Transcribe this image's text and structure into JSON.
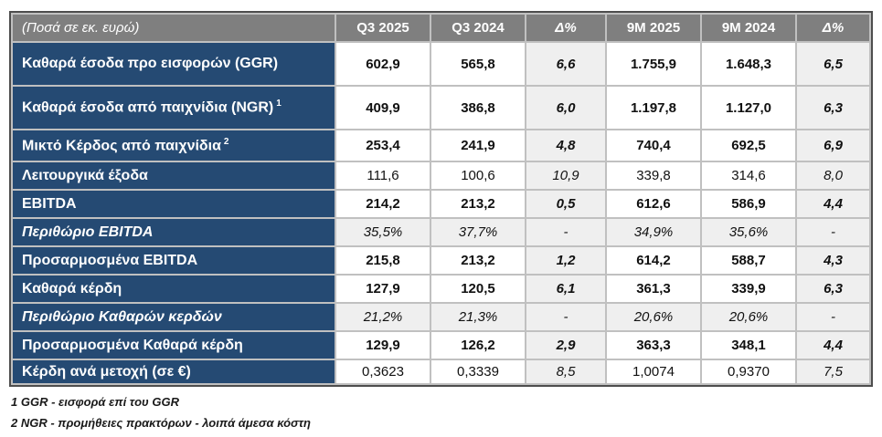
{
  "colors": {
    "header_bg": "#7f7f7f",
    "label_column_bg": "#254a73",
    "shaded_cell_bg": "#efefef",
    "grid_line": "#c0c0c0",
    "outer_border": "#4d4d4d",
    "text_on_dark": "#ffffff",
    "body_text": "#1a1a1a"
  },
  "table": {
    "corner_label": "(Ποσά σε εκ. ευρώ)",
    "columns": [
      "Q3 2025",
      "Q3 2024",
      "Δ%",
      "9M 2025",
      "9M 2024",
      "Δ%"
    ],
    "rows": [
      {
        "label": "Καθαρά έσοδα προ εισφορών (GGR)",
        "values": [
          "602,9",
          "565,8",
          "6,6",
          "1.755,9",
          "1.648,3",
          "6,5"
        ]
      },
      {
        "label": "Καθαρά έσοδα από παιχνίδια (NGR)",
        "sup": "1",
        "values": [
          "409,9",
          "386,8",
          "6,0",
          "1.197,8",
          "1.127,0",
          "6,3"
        ]
      },
      {
        "label": "Μικτό Κέρδος από παιχνίδια",
        "sup": "2",
        "values": [
          "253,4",
          "241,9",
          "4,8",
          "740,4",
          "692,5",
          "6,9"
        ]
      },
      {
        "label": "Λειτουργικά έξοδα",
        "values": [
          "111,6",
          "100,6",
          "10,9",
          "339,8",
          "314,6",
          "8,0"
        ]
      },
      {
        "label": "EBITDA",
        "values": [
          "214,2",
          "213,2",
          "0,5",
          "612,6",
          "586,9",
          "4,4"
        ]
      },
      {
        "label": "Περιθώριο EBITDA",
        "values": [
          "35,5%",
          "37,7%",
          "-",
          "34,9%",
          "35,6%",
          "-"
        ]
      },
      {
        "label": "Προσαρμοσμένα EBITDA",
        "values": [
          "215,8",
          "213,2",
          "1,2",
          "614,2",
          "588,7",
          "4,3"
        ]
      },
      {
        "label": "Καθαρά κέρδη",
        "values": [
          "127,9",
          "120,5",
          "6,1",
          "361,3",
          "339,9",
          "6,3"
        ]
      },
      {
        "label": "Περιθώριο Καθαρών κερδών",
        "values": [
          "21,2%",
          "21,3%",
          "-",
          "20,6%",
          "20,6%",
          "-"
        ]
      },
      {
        "label": "Προσαρμοσμένα Καθαρά κέρδη",
        "values": [
          "129,9",
          "126,2",
          "2,9",
          "363,3",
          "348,1",
          "4,4"
        ]
      },
      {
        "label": "Κέρδη ανά μετοχή (σε €)",
        "values": [
          "0,3623",
          "0,3339",
          "8,5",
          "1,0074",
          "0,9370",
          "7,5"
        ]
      }
    ]
  },
  "footnotes": [
    "1 GGR - εισφορά επί του GGR",
    "2 NGR - προμήθειες πρακτόρων - λοιπά άμεσα κόστη"
  ]
}
